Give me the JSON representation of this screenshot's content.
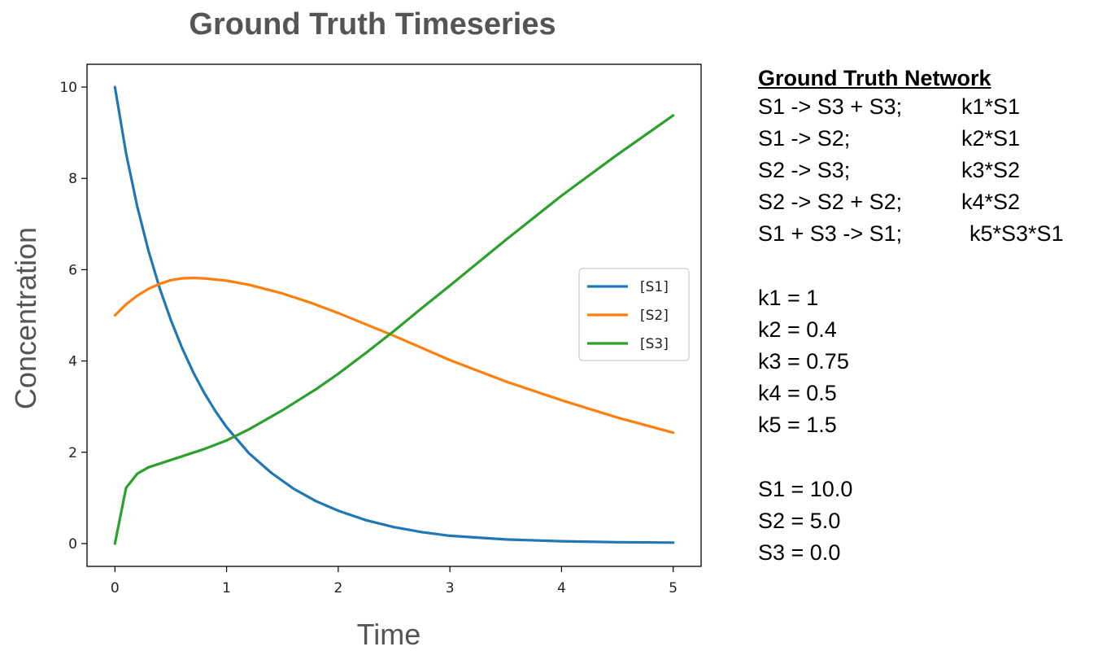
{
  "chart_data": {
    "type": "line",
    "title": "Ground Truth Timeseries",
    "xlabel": "Time",
    "ylabel": "Concentration",
    "xlim": [
      -0.25,
      5.25
    ],
    "ylim": [
      -0.5,
      10.5
    ],
    "xticks": [
      0,
      1,
      2,
      3,
      4,
      5
    ],
    "yticks": [
      0,
      2,
      4,
      6,
      8,
      10
    ],
    "grid": false,
    "legend_position": "center-right",
    "series": [
      {
        "name": "[S1]",
        "color": "#1f77b4",
        "x": [
          0,
          0.1,
          0.2,
          0.3,
          0.4,
          0.5,
          0.6,
          0.7,
          0.8,
          0.9,
          1.0,
          1.2,
          1.4,
          1.6,
          1.8,
          2.0,
          2.25,
          2.5,
          2.75,
          3.0,
          3.5,
          4.0,
          4.5,
          5.0
        ],
        "values": [
          10.0,
          8.55,
          7.38,
          6.42,
          5.6,
          4.9,
          4.29,
          3.76,
          3.3,
          2.9,
          2.55,
          1.98,
          1.55,
          1.2,
          0.93,
          0.72,
          0.51,
          0.36,
          0.25,
          0.17,
          0.09,
          0.05,
          0.03,
          0.02
        ]
      },
      {
        "name": "[S2]",
        "color": "#ff7f0e",
        "x": [
          0,
          0.1,
          0.2,
          0.3,
          0.4,
          0.5,
          0.6,
          0.7,
          0.8,
          1.0,
          1.2,
          1.5,
          1.75,
          2.0,
          2.5,
          3.0,
          3.5,
          4.0,
          4.5,
          5.0
        ],
        "values": [
          5.0,
          5.24,
          5.43,
          5.58,
          5.69,
          5.77,
          5.81,
          5.82,
          5.81,
          5.76,
          5.67,
          5.48,
          5.28,
          5.05,
          4.55,
          4.02,
          3.55,
          3.14,
          2.76,
          2.43
        ]
      },
      {
        "name": "[S3]",
        "color": "#2ca02c",
        "x": [
          0,
          0.1,
          0.2,
          0.3,
          0.4,
          0.5,
          0.6,
          0.7,
          0.8,
          1.0,
          1.2,
          1.5,
          1.8,
          2.0,
          2.25,
          2.5,
          2.75,
          3.0,
          3.5,
          4.0,
          4.5,
          5.0
        ],
        "values": [
          0.0,
          1.22,
          1.53,
          1.67,
          1.75,
          1.83,
          1.91,
          1.99,
          2.07,
          2.26,
          2.5,
          2.92,
          3.38,
          3.72,
          4.18,
          4.66,
          5.16,
          5.65,
          6.65,
          7.62,
          8.52,
          9.38
        ]
      }
    ]
  },
  "info": {
    "heading": "Ground Truth Network",
    "reactions": [
      {
        "eq": "S1 -> S3 + S3;",
        "rate": "k1*S1"
      },
      {
        "eq": "S1 -> S2;",
        "rate": "k2*S1"
      },
      {
        "eq": "S2 -> S3;",
        "rate": "k3*S2"
      },
      {
        "eq": "S2 -> S2 + S2;",
        "rate": "k4*S2"
      },
      {
        "eq": "S1 + S3 -> S1;",
        "rate": "k5*S3*S1"
      }
    ],
    "params": [
      "k1 = 1",
      "k2 = 0.4",
      "k3 = 0.75",
      "k4 = 0.5",
      "k5 = 1.5"
    ],
    "initial": [
      "S1 = 10.0",
      "S2 = 5.0",
      "S3 = 0.0"
    ]
  }
}
